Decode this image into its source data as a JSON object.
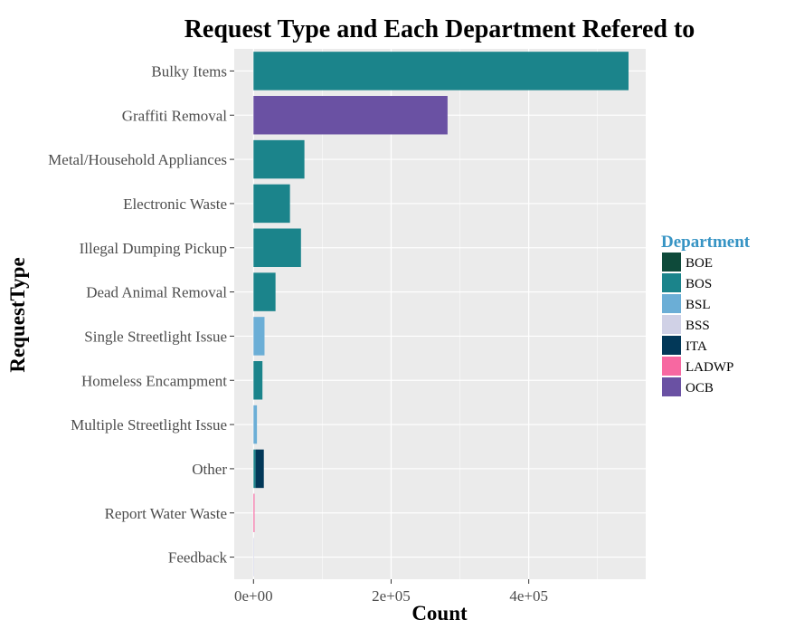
{
  "chart_data": {
    "type": "bar",
    "orientation": "horizontal",
    "stacked": true,
    "title": "Request Type and Each Department Refered to",
    "xlabel": "Count",
    "ylabel": "RequestType",
    "xlim": [
      -28000,
      570000
    ],
    "xticks": [
      0,
      200000,
      400000
    ],
    "xtick_labels": [
      "0e+00",
      "2e+05",
      "4e+05"
    ],
    "categories": [
      "Bulky Items",
      "Graffiti Removal",
      "Metal/Household Appliances",
      "Electronic Waste",
      "Illegal Dumping Pickup",
      "Dead Animal Removal",
      "Single Streetlight Issue",
      "Homeless Encampment",
      "Multiple Streetlight Issue",
      "Other",
      "Report Water Waste",
      "Feedback"
    ],
    "series": [
      {
        "name": "BOE",
        "color": "#0e4a3a",
        "values": [
          0,
          0,
          0,
          0,
          0,
          0,
          0,
          0,
          0,
          0,
          0,
          0
        ]
      },
      {
        "name": "BOS",
        "color": "#1b848b",
        "values": [
          545000,
          0,
          74000,
          53000,
          69000,
          32000,
          0,
          13000,
          0,
          3000,
          0,
          0
        ]
      },
      {
        "name": "BSL",
        "color": "#6baed6",
        "values": [
          0,
          0,
          0,
          0,
          0,
          0,
          16000,
          0,
          5000,
          0,
          0,
          0
        ]
      },
      {
        "name": "BSS",
        "color": "#d0d1e6",
        "values": [
          0,
          0,
          0,
          0,
          0,
          0,
          0,
          0,
          0,
          0,
          0,
          800
        ]
      },
      {
        "name": "ITA",
        "color": "#023858",
        "values": [
          0,
          0,
          0,
          0,
          0,
          0,
          0,
          0,
          0,
          12000,
          0,
          0
        ]
      },
      {
        "name": "LADWP",
        "color": "#f768a1",
        "values": [
          0,
          0,
          0,
          0,
          0,
          0,
          0,
          0,
          0,
          0,
          1500,
          0
        ]
      },
      {
        "name": "OCB",
        "color": "#6a51a3",
        "values": [
          0,
          282000,
          0,
          0,
          0,
          0,
          0,
          0,
          0,
          0,
          0,
          0
        ]
      }
    ],
    "legend": {
      "title": "Department",
      "title_color": "#3794c4",
      "position": "right"
    },
    "panel_background": "#ebebeb",
    "grid_color": "#ffffff",
    "grid": true
  }
}
